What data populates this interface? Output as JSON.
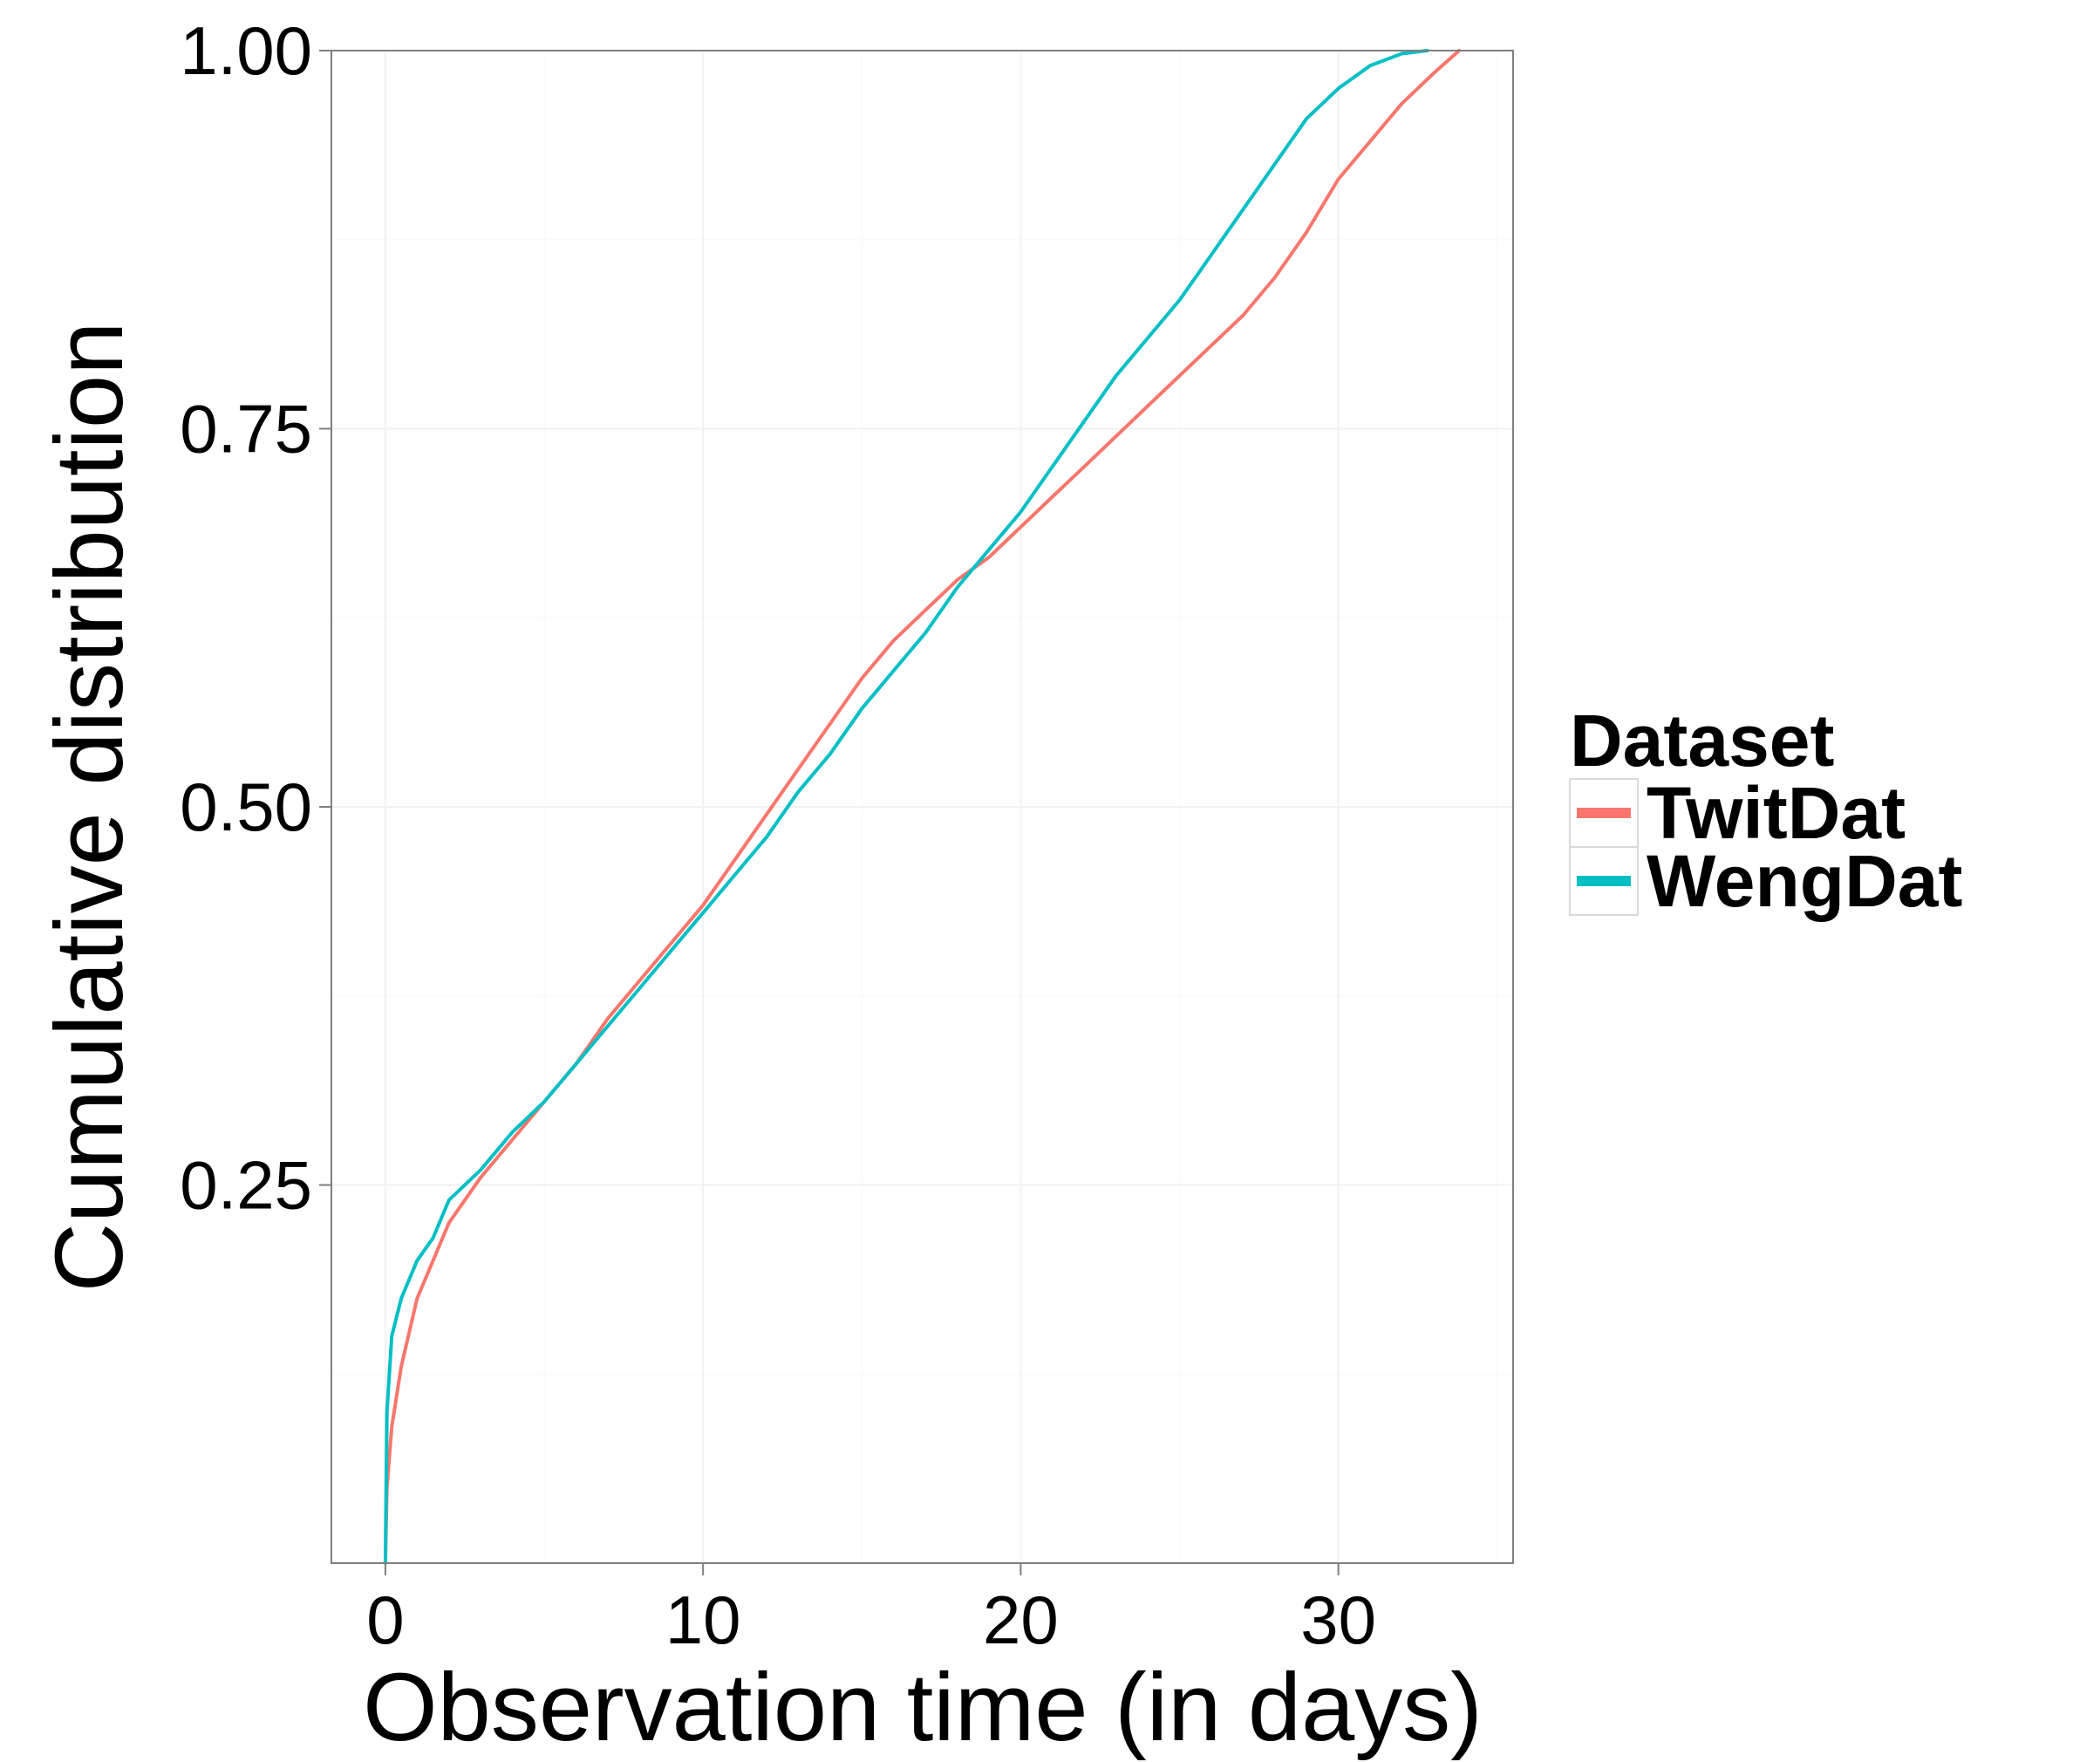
{
  "chart_data": {
    "type": "line",
    "title": "",
    "xlabel": "Observation time (in days)",
    "ylabel": "Cumulative distribution",
    "xlim": [
      -1.7,
      35.5
    ],
    "ylim": [
      0.0,
      1.0
    ],
    "x_ticks": [
      0,
      10,
      20,
      30
    ],
    "x_tick_labels": [
      "0",
      "10",
      "20",
      "30"
    ],
    "y_ticks": [
      0.25,
      0.5,
      0.75,
      1.0
    ],
    "y_tick_labels": [
      "0.25",
      "0.50",
      "0.75",
      "1.00"
    ],
    "grid": true,
    "legend": {
      "title": "Dataset",
      "position": "right"
    },
    "series": [
      {
        "name": "TwitDat",
        "color": "#F8766D",
        "x": [
          0,
          0.05,
          0.2,
          0.5,
          1,
          1.5,
          2,
          3,
          4,
          5,
          6,
          7,
          8,
          9,
          10,
          11,
          12,
          13,
          14,
          15,
          16,
          17,
          18,
          19,
          20,
          21,
          22,
          23,
          24,
          25,
          26,
          27,
          28,
          29,
          30,
          31,
          32,
          33,
          33.8
        ],
        "values": [
          0.0,
          0.05,
          0.09,
          0.13,
          0.175,
          0.2,
          0.225,
          0.255,
          0.28,
          0.305,
          0.33,
          0.36,
          0.385,
          0.41,
          0.435,
          0.465,
          0.495,
          0.525,
          0.555,
          0.585,
          0.61,
          0.63,
          0.65,
          0.665,
          0.685,
          0.705,
          0.725,
          0.745,
          0.765,
          0.785,
          0.805,
          0.825,
          0.85,
          0.88,
          0.915,
          0.94,
          0.965,
          0.985,
          1.0
        ]
      },
      {
        "name": "WengDat",
        "color": "#00BFC4",
        "x": [
          0,
          0.05,
          0.2,
          0.5,
          1,
          1.5,
          2,
          3,
          4,
          5,
          6,
          7,
          8,
          9,
          10,
          11,
          12,
          13,
          14,
          15,
          16,
          17,
          18,
          19,
          20,
          21,
          22,
          23,
          24,
          25,
          26,
          27,
          28,
          29,
          30,
          31,
          32,
          32.8
        ],
        "values": [
          0.0,
          0.1,
          0.15,
          0.175,
          0.2,
          0.215,
          0.24,
          0.26,
          0.285,
          0.305,
          0.33,
          0.355,
          0.38,
          0.405,
          0.43,
          0.455,
          0.48,
          0.51,
          0.535,
          0.565,
          0.59,
          0.615,
          0.645,
          0.67,
          0.695,
          0.725,
          0.755,
          0.785,
          0.81,
          0.835,
          0.865,
          0.895,
          0.925,
          0.955,
          0.975,
          0.99,
          0.998,
          1.0
        ]
      }
    ]
  }
}
